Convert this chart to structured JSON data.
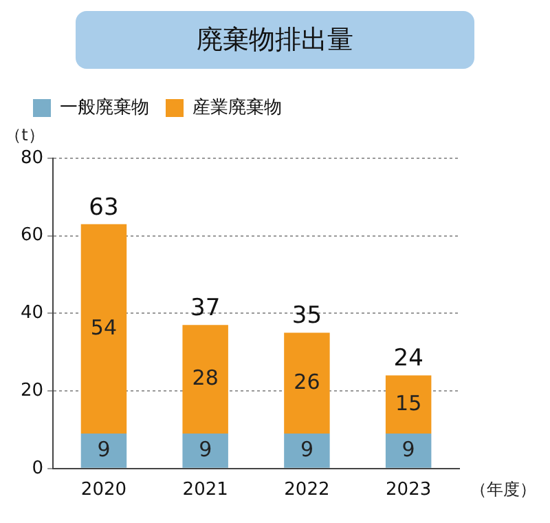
{
  "chart_data": {
    "type": "bar",
    "title": "廃棄物排出量",
    "ylabel": "（t）",
    "xlabel": "（年度）",
    "categories": [
      "2020",
      "2021",
      "2022",
      "2023"
    ],
    "stacked": true,
    "series": [
      {
        "name": "一般廃棄物",
        "color": "#7aaec9",
        "values": [
          9,
          9,
          9,
          9
        ]
      },
      {
        "name": "産業廃棄物",
        "color": "#f39a1e",
        "values": [
          54,
          28,
          26,
          15
        ]
      }
    ],
    "totals": [
      "63",
      "37",
      "35",
      "24"
    ],
    "data_labels": true,
    "ylim": [
      0,
      80
    ],
    "yticks": [
      0,
      20,
      40,
      60,
      80
    ],
    "grid": "y",
    "legend": "top left"
  }
}
